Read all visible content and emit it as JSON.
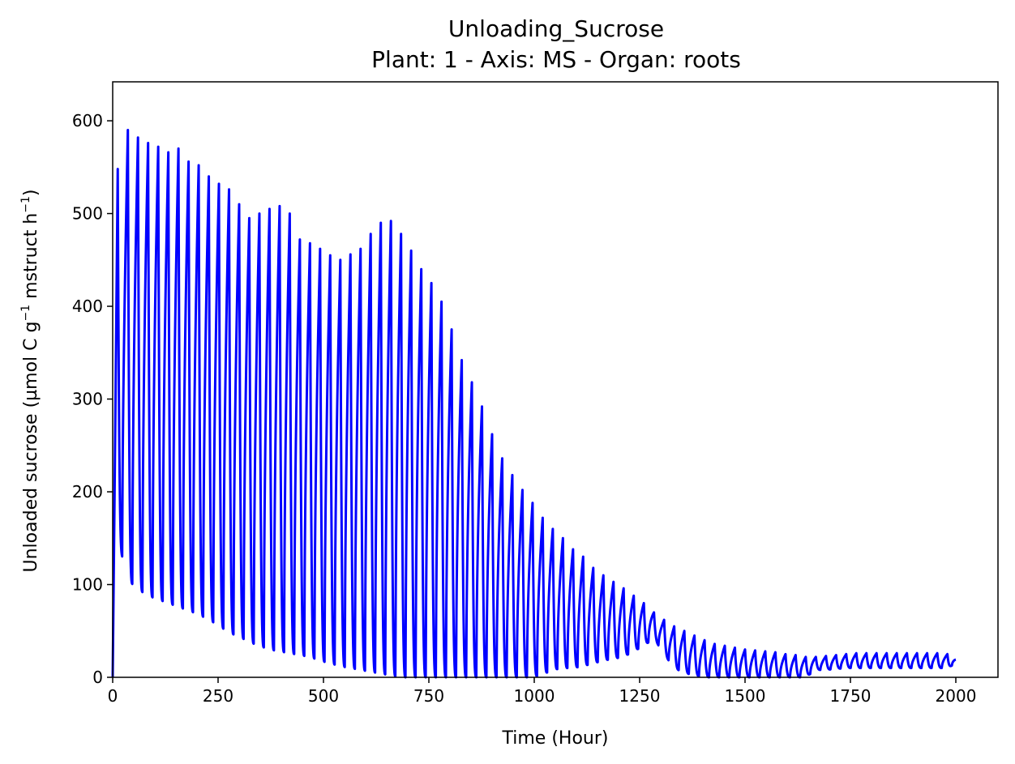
{
  "chart_data": {
    "type": "line",
    "title": "Unloading_Sucrose",
    "subtitle": "Plant: 1 - Axis: MS - Organ: roots",
    "xlabel": "Time (Hour)",
    "ylabel": {
      "part1": "Unloaded sucrose (µmol C g",
      "sup1": "−1",
      "part2": " mstruct h",
      "sup2": "−1",
      "part3": ")"
    },
    "xlim": [
      0,
      2100
    ],
    "ylim": [
      0,
      642
    ],
    "xticks": [
      0,
      250,
      500,
      750,
      1000,
      1250,
      1500,
      1750,
      2000
    ],
    "yticks": [
      0,
      100,
      200,
      300,
      400,
      500,
      600
    ],
    "grid": false,
    "line_color": "#0000ff",
    "series": [
      {
        "period_hours": 24,
        "envelope_peak": [
          [
            0,
            520
          ],
          [
            12,
            548
          ],
          [
            36,
            590
          ],
          [
            60,
            582
          ],
          [
            84,
            576
          ],
          [
            108,
            572
          ],
          [
            132,
            566
          ],
          [
            156,
            570
          ],
          [
            180,
            556
          ],
          [
            204,
            552
          ],
          [
            228,
            540
          ],
          [
            252,
            532
          ],
          [
            276,
            526
          ],
          [
            300,
            510
          ],
          [
            324,
            495
          ],
          [
            348,
            500
          ],
          [
            372,
            505
          ],
          [
            396,
            508
          ],
          [
            420,
            500
          ],
          [
            444,
            472
          ],
          [
            468,
            468
          ],
          [
            492,
            462
          ],
          [
            516,
            455
          ],
          [
            540,
            450
          ],
          [
            564,
            456
          ],
          [
            588,
            462
          ],
          [
            612,
            478
          ],
          [
            636,
            490
          ],
          [
            660,
            492
          ],
          [
            684,
            478
          ],
          [
            708,
            460
          ],
          [
            732,
            440
          ],
          [
            756,
            425
          ],
          [
            780,
            405
          ],
          [
            804,
            375
          ],
          [
            828,
            342
          ],
          [
            852,
            318
          ],
          [
            876,
            292
          ],
          [
            900,
            262
          ],
          [
            924,
            236
          ],
          [
            948,
            218
          ],
          [
            972,
            202
          ],
          [
            996,
            188
          ],
          [
            1020,
            172
          ],
          [
            1044,
            160
          ],
          [
            1068,
            150
          ],
          [
            1092,
            138
          ],
          [
            1116,
            130
          ],
          [
            1140,
            118
          ],
          [
            1164,
            110
          ],
          [
            1188,
            103
          ],
          [
            1212,
            96
          ],
          [
            1236,
            88
          ],
          [
            1260,
            80
          ],
          [
            1284,
            70
          ],
          [
            1308,
            62
          ],
          [
            1332,
            55
          ],
          [
            1356,
            50
          ],
          [
            1380,
            45
          ],
          [
            1404,
            40
          ],
          [
            1428,
            36
          ],
          [
            1452,
            34
          ],
          [
            1476,
            32
          ],
          [
            1500,
            30
          ],
          [
            1524,
            29
          ],
          [
            1548,
            28
          ],
          [
            1572,
            27
          ],
          [
            1596,
            25
          ],
          [
            1620,
            24
          ],
          [
            1644,
            22
          ],
          [
            1668,
            22
          ],
          [
            1692,
            23
          ],
          [
            1716,
            24
          ],
          [
            1740,
            25
          ],
          [
            1764,
            26
          ],
          [
            1788,
            26
          ],
          [
            1812,
            26
          ],
          [
            1836,
            26
          ],
          [
            1860,
            26
          ],
          [
            1884,
            26
          ],
          [
            1908,
            26
          ],
          [
            1932,
            26
          ],
          [
            1956,
            26
          ],
          [
            1980,
            25
          ],
          [
            2000,
            20
          ]
        ],
        "envelope_trough": [
          [
            0,
            0
          ],
          [
            12,
            150
          ],
          [
            36,
            105
          ],
          [
            60,
            95
          ],
          [
            84,
            88
          ],
          [
            108,
            84
          ],
          [
            132,
            80
          ],
          [
            156,
            76
          ],
          [
            180,
            72
          ],
          [
            204,
            68
          ],
          [
            228,
            62
          ],
          [
            252,
            56
          ],
          [
            276,
            48
          ],
          [
            300,
            44
          ],
          [
            324,
            38
          ],
          [
            348,
            34
          ],
          [
            372,
            30
          ],
          [
            396,
            28
          ],
          [
            420,
            26
          ],
          [
            444,
            24
          ],
          [
            468,
            22
          ],
          [
            492,
            18
          ],
          [
            516,
            15
          ],
          [
            540,
            12
          ],
          [
            564,
            10
          ],
          [
            588,
            8
          ],
          [
            612,
            6
          ],
          [
            636,
            4
          ],
          [
            660,
            2
          ],
          [
            684,
            0
          ],
          [
            708,
            0
          ],
          [
            732,
            0
          ],
          [
            756,
            0
          ],
          [
            780,
            0
          ],
          [
            804,
            0
          ],
          [
            828,
            0
          ],
          [
            852,
            0
          ],
          [
            876,
            0
          ],
          [
            900,
            0
          ],
          [
            924,
            0
          ],
          [
            948,
            0
          ],
          [
            972,
            0
          ],
          [
            996,
            0
          ],
          [
            1020,
            3
          ],
          [
            1044,
            8
          ],
          [
            1068,
            10
          ],
          [
            1092,
            10
          ],
          [
            1116,
            12
          ],
          [
            1140,
            15
          ],
          [
            1164,
            18
          ],
          [
            1188,
            20
          ],
          [
            1212,
            22
          ],
          [
            1236,
            28
          ],
          [
            1260,
            34
          ],
          [
            1284,
            42
          ],
          [
            1308,
            25
          ],
          [
            1332,
            10
          ],
          [
            1356,
            5
          ],
          [
            1380,
            2
          ],
          [
            1404,
            0
          ],
          [
            1428,
            0
          ],
          [
            1452,
            0
          ],
          [
            1476,
            0
          ],
          [
            1500,
            0
          ],
          [
            1524,
            0
          ],
          [
            1548,
            0
          ],
          [
            1572,
            0
          ],
          [
            1596,
            0
          ],
          [
            1620,
            0
          ],
          [
            1644,
            0
          ],
          [
            1668,
            8
          ],
          [
            1692,
            8
          ],
          [
            1716,
            9
          ],
          [
            1740,
            10
          ],
          [
            1764,
            10
          ],
          [
            1788,
            10
          ],
          [
            1812,
            10
          ],
          [
            1836,
            10
          ],
          [
            1860,
            10
          ],
          [
            1884,
            10
          ],
          [
            1908,
            10
          ],
          [
            1932,
            10
          ],
          [
            1956,
            10
          ],
          [
            1980,
            10
          ],
          [
            2000,
            15
          ]
        ]
      }
    ]
  }
}
